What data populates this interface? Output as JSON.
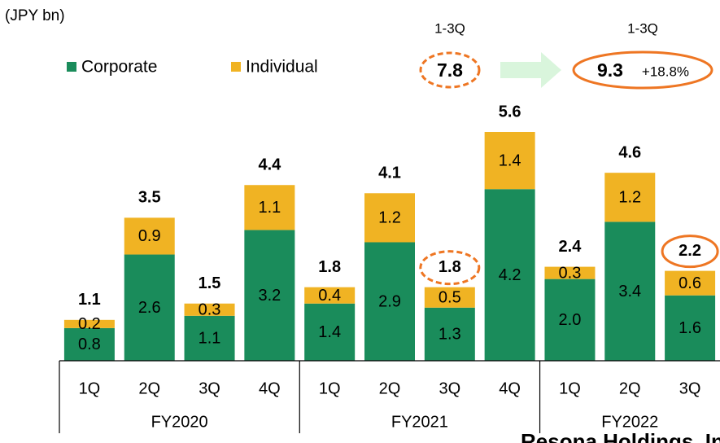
{
  "chart_data": {
    "type": "stacked_bar",
    "unit_label": "(JPY bn)",
    "categories": [
      "1Q",
      "2Q",
      "3Q",
      "4Q",
      "1Q",
      "2Q",
      "3Q",
      "4Q",
      "1Q",
      "2Q",
      "3Q"
    ],
    "groups": [
      "FY2020",
      "FY2021",
      "FY2022"
    ],
    "series": [
      {
        "name": "Corporate",
        "color": "#1a8c5b",
        "values": [
          0.8,
          2.6,
          1.1,
          3.2,
          1.4,
          2.9,
          1.3,
          4.2,
          2.0,
          3.4,
          1.6
        ],
        "value_labels": [
          "0.8",
          "2.6",
          "1.1",
          "3.2",
          "1.4",
          "2.9",
          "1.3",
          "4.2",
          "2.0",
          "3.4",
          "1.6"
        ]
      },
      {
        "name": "Individual",
        "color": "#f0b323",
        "values": [
          0.2,
          0.9,
          0.3,
          1.1,
          0.4,
          1.2,
          0.5,
          1.4,
          0.3,
          1.2,
          0.6
        ]
      }
    ],
    "totals": [
      1.1,
      3.5,
      1.5,
      4.4,
      1.8,
      4.1,
      1.8,
      5.6,
      2.4,
      4.6,
      2.2
    ],
    "ylim": [
      0,
      5.6
    ],
    "annotations": {
      "before_label": "1-3Q",
      "before_value": 7.8,
      "after_label": "1-3Q",
      "after_value": 9.3,
      "change": "+18.8%"
    },
    "footer": "Resona Holdings, Inc."
  }
}
